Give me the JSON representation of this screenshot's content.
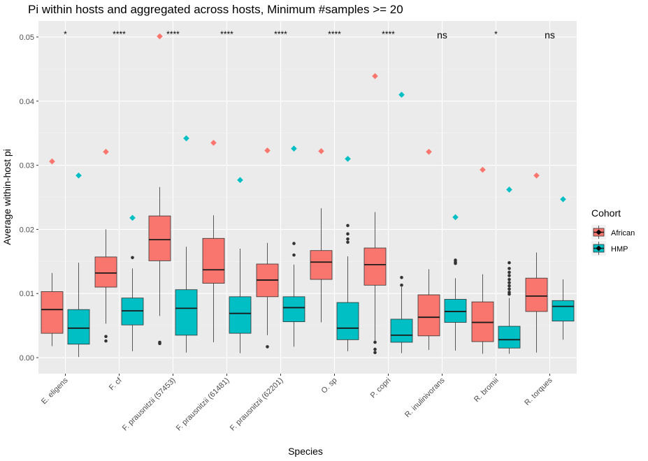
{
  "chart_data": {
    "type": "boxplot",
    "title": "Pi within hosts and aggregated across hosts, Minimum #samples >= 20",
    "xlabel": "Species",
    "ylabel": "Average within-host pi",
    "ylim": [
      -0.0025,
      0.0525
    ],
    "yticks": [
      0.0,
      0.01,
      0.02,
      0.03,
      0.04,
      0.05
    ],
    "ytick_labels": [
      "0.00",
      "0.01",
      "0.02",
      "0.03",
      "0.04",
      "0.05"
    ],
    "grid": true,
    "legend_position": "right",
    "legend": {
      "title": "Cohort",
      "entries": [
        {
          "name": "African",
          "color": "#F8766D"
        },
        {
          "name": "HMP",
          "color": "#00BFC4"
        }
      ]
    },
    "categories": [
      "E. eligens",
      "F. cf",
      "F. prausnitzii (57453)",
      "F. prausnitzii (61481)",
      "F. prausnitzii (62201)",
      "O. sp",
      "P. copri",
      "R. inulinivorans",
      "R. bromii",
      "R. torques"
    ],
    "significance": [
      "*",
      "****",
      "****",
      "****",
      "****",
      "****",
      "****",
      "ns",
      "*",
      "ns"
    ],
    "series": [
      {
        "name": "African",
        "color": "#F8766D",
        "boxes": [
          {
            "lo": 0.0018,
            "q1": 0.0038,
            "median": 0.0075,
            "q3": 0.0103,
            "hi": 0.0132,
            "outliers": []
          },
          {
            "lo": 0.0053,
            "q1": 0.011,
            "median": 0.0132,
            "q3": 0.0157,
            "hi": 0.02,
            "outliers": [
              0.0033,
              0.0026
            ]
          },
          {
            "lo": 0.0065,
            "q1": 0.0151,
            "median": 0.0184,
            "q3": 0.0221,
            "hi": 0.0266,
            "outliers": [
              0.0024,
              0.0022
            ]
          },
          {
            "lo": 0.0024,
            "q1": 0.0116,
            "median": 0.0137,
            "q3": 0.0186,
            "hi": 0.0222,
            "outliers": []
          },
          {
            "lo": 0.0035,
            "q1": 0.0095,
            "median": 0.0121,
            "q3": 0.0146,
            "hi": 0.0179,
            "outliers": [
              0.0017
            ]
          },
          {
            "lo": 0.0055,
            "q1": 0.0122,
            "median": 0.0149,
            "q3": 0.0167,
            "hi": 0.0233,
            "outliers": []
          },
          {
            "lo": 0.0022,
            "q1": 0.0113,
            "median": 0.0145,
            "q3": 0.0171,
            "hi": 0.0227,
            "outliers": [
              0.0024,
              0.0013,
              0.0008
            ]
          },
          {
            "lo": 0.0012,
            "q1": 0.0034,
            "median": 0.0063,
            "q3": 0.0098,
            "hi": 0.0138,
            "outliers": []
          },
          {
            "lo": 0.0006,
            "q1": 0.0025,
            "median": 0.0055,
            "q3": 0.0087,
            "hi": 0.013,
            "outliers": []
          },
          {
            "lo": 0.0008,
            "q1": 0.0072,
            "median": 0.0096,
            "q3": 0.0124,
            "hi": 0.0164,
            "outliers": []
          }
        ],
        "aggregated": [
          0.0306,
          0.0321,
          0.0501,
          0.0335,
          0.0323,
          0.0322,
          0.0439,
          0.0321,
          0.0293,
          0.0284
        ]
      },
      {
        "name": "HMP",
        "color": "#00BFC4",
        "boxes": [
          {
            "lo": 0.0001,
            "q1": 0.0021,
            "median": 0.0046,
            "q3": 0.0075,
            "hi": 0.0148,
            "outliers": []
          },
          {
            "lo": 0.001,
            "q1": 0.0051,
            "median": 0.0073,
            "q3": 0.0093,
            "hi": 0.0139,
            "outliers": [
              0.0156
            ]
          },
          {
            "lo": 0.0008,
            "q1": 0.0035,
            "median": 0.0077,
            "q3": 0.0106,
            "hi": 0.0173,
            "outliers": []
          },
          {
            "lo": 0.0007,
            "q1": 0.0038,
            "median": 0.0069,
            "q3": 0.0095,
            "hi": 0.017,
            "outliers": []
          },
          {
            "lo": 0.0017,
            "q1": 0.0056,
            "median": 0.0078,
            "q3": 0.0095,
            "hi": 0.0145,
            "outliers": [
              0.0178,
              0.016
            ]
          },
          {
            "lo": 0.001,
            "q1": 0.0028,
            "median": 0.0046,
            "q3": 0.0086,
            "hi": 0.0158,
            "outliers": [
              0.0206,
              0.0193,
              0.0185,
              0.018
            ]
          },
          {
            "lo": 0.0007,
            "q1": 0.0024,
            "median": 0.0035,
            "q3": 0.006,
            "hi": 0.011,
            "outliers": [
              0.0125,
              0.0113
            ]
          },
          {
            "lo": 0.0011,
            "q1": 0.0055,
            "median": 0.0072,
            "q3": 0.0091,
            "hi": 0.0124,
            "outliers": [
              0.0152,
              0.0149,
              0.0147
            ]
          },
          {
            "lo": 0.0006,
            "q1": 0.0015,
            "median": 0.0028,
            "q3": 0.0049,
            "hi": 0.0093,
            "outliers": [
              0.0148,
              0.0139,
              0.0133,
              0.0128,
              0.0122,
              0.0117,
              0.0112,
              0.0107,
              0.0102,
              0.0099
            ]
          },
          {
            "lo": 0.0028,
            "q1": 0.0057,
            "median": 0.008,
            "q3": 0.0089,
            "hi": 0.0122,
            "outliers": []
          }
        ],
        "aggregated": [
          0.0284,
          0.0218,
          0.0342,
          0.0277,
          0.0326,
          0.031,
          0.041,
          0.0219,
          0.0262,
          0.0247
        ]
      }
    ]
  }
}
